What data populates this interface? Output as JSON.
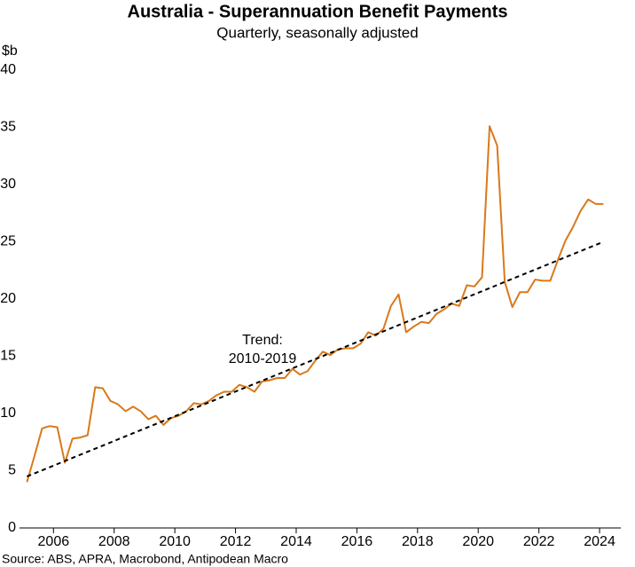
{
  "chart_data": {
    "type": "line",
    "title": "Australia - Superannuation Benefit Payments",
    "subtitle": "Quarterly, seasonally adjusted",
    "y_label": "$b",
    "source": "Source: ABS, APRA, Macrobond, Antipodean Macro",
    "annotation": [
      "Trend:",
      "2010-2019"
    ],
    "xlim": [
      2004.88,
      2024.7
    ],
    "xticks": [
      2006,
      2008,
      2010,
      2012,
      2014,
      2016,
      2018,
      2020,
      2022,
      2024
    ],
    "ylim": [
      0,
      40
    ],
    "yticks": [
      0,
      5,
      10,
      15,
      20,
      25,
      30,
      35,
      40
    ],
    "grid": false,
    "series": [
      {
        "color": "#d9791a",
        "dash": false,
        "x": [
          2005.125,
          2005.375,
          2005.625,
          2005.875,
          2006.125,
          2006.375,
          2006.625,
          2006.875,
          2007.125,
          2007.375,
          2007.625,
          2007.875,
          2008.125,
          2008.375,
          2008.625,
          2008.875,
          2009.125,
          2009.375,
          2009.625,
          2009.875,
          2010.125,
          2010.375,
          2010.625,
          2010.875,
          2011.125,
          2011.375,
          2011.625,
          2011.875,
          2012.125,
          2012.375,
          2012.625,
          2012.875,
          2013.125,
          2013.375,
          2013.625,
          2013.875,
          2014.125,
          2014.375,
          2014.625,
          2014.875,
          2015.125,
          2015.375,
          2015.625,
          2015.875,
          2016.125,
          2016.375,
          2016.625,
          2016.875,
          2017.125,
          2017.375,
          2017.625,
          2017.875,
          2018.125,
          2018.375,
          2018.625,
          2018.875,
          2019.125,
          2019.375,
          2019.625,
          2019.875,
          2020.125,
          2020.375,
          2020.625,
          2020.875,
          2021.125,
          2021.375,
          2021.625,
          2021.875,
          2022.125,
          2022.375,
          2022.625,
          2022.875,
          2023.125,
          2023.375,
          2023.625,
          2023.875,
          2024.125
        ],
        "values": [
          4.0,
          6.3,
          8.7,
          8.9,
          8.8,
          5.7,
          7.8,
          7.9,
          8.1,
          12.3,
          12.2,
          11.1,
          10.8,
          10.2,
          10.6,
          10.2,
          9.5,
          9.8,
          9.0,
          9.6,
          9.8,
          10.2,
          10.9,
          10.8,
          11.1,
          11.6,
          11.9,
          11.9,
          12.5,
          12.3,
          11.9,
          12.8,
          12.9,
          13.1,
          13.1,
          13.9,
          13.4,
          13.7,
          14.6,
          15.4,
          15.1,
          15.6,
          15.7,
          15.7,
          16.1,
          17.1,
          16.8,
          17.4,
          19.4,
          20.4,
          17.1,
          17.6,
          18.0,
          17.9,
          18.7,
          19.1,
          19.6,
          19.4,
          21.2,
          21.1,
          21.9,
          35.1,
          33.4,
          21.5,
          19.3,
          20.6,
          20.6,
          21.7,
          21.6,
          21.6,
          23.4,
          25.1,
          26.3,
          27.7,
          28.7,
          28.3,
          28.3
        ]
      },
      {
        "color": "#000000",
        "dash": true,
        "x": [
          2005.125,
          2024.125
        ],
        "values": [
          4.5,
          25.0
        ]
      }
    ]
  }
}
